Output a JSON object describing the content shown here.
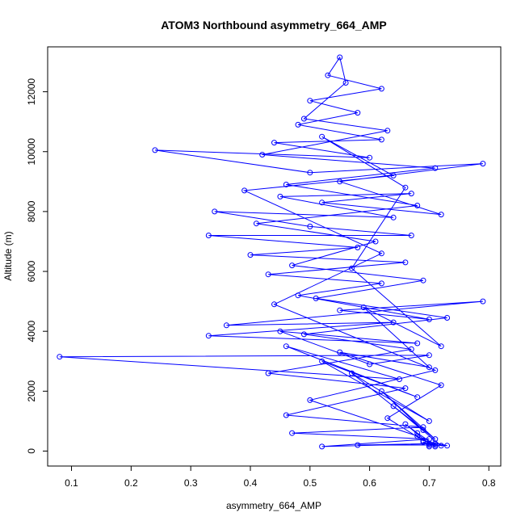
{
  "chart_data": {
    "type": "line",
    "title": "ATOM3 Northbound asymmetry_664_AMP",
    "xlabel": "asymmetry_664_AMP",
    "ylabel": "Altitude (m)",
    "xlim": [
      0.06,
      0.82
    ],
    "ylim": [
      -500,
      13500
    ],
    "x_ticks": [
      0.1,
      0.2,
      0.3,
      0.4,
      0.5,
      0.6,
      0.7,
      0.8
    ],
    "x_tick_labels": [
      "0.1",
      "0.2",
      "0.3",
      "0.4",
      "0.5",
      "0.6",
      "0.7",
      "0.8"
    ],
    "y_ticks": [
      0,
      2000,
      4000,
      6000,
      8000,
      10000,
      12000
    ],
    "y_tick_labels": [
      "0",
      "2000",
      "4000",
      "6000",
      "8000",
      "10000",
      "12000"
    ],
    "grid": false,
    "series_color": "#0000ff",
    "markers": "open-circle",
    "series": [
      {
        "points": [
          {
            "x": 0.7,
            "y": 150
          },
          {
            "x": 0.69,
            "y": 300
          },
          {
            "x": 0.71,
            "y": 200
          },
          {
            "x": 0.68,
            "y": 600
          },
          {
            "x": 0.66,
            "y": 900
          },
          {
            "x": 0.7,
            "y": 250
          },
          {
            "x": 0.72,
            "y": 180
          },
          {
            "x": 0.64,
            "y": 1500
          },
          {
            "x": 0.71,
            "y": 400
          },
          {
            "x": 0.62,
            "y": 2000
          },
          {
            "x": 0.69,
            "y": 700
          },
          {
            "x": 0.57,
            "y": 2600
          },
          {
            "x": 0.7,
            "y": 1000
          },
          {
            "x": 0.52,
            "y": 3000
          },
          {
            "x": 0.68,
            "y": 1800
          },
          {
            "x": 0.46,
            "y": 3500
          },
          {
            "x": 0.65,
            "y": 2400
          },
          {
            "x": 0.08,
            "y": 3150
          },
          {
            "x": 0.7,
            "y": 3200
          },
          {
            "x": 0.6,
            "y": 2900
          },
          {
            "x": 0.45,
            "y": 4000
          },
          {
            "x": 0.68,
            "y": 3600
          },
          {
            "x": 0.33,
            "y": 3850
          },
          {
            "x": 0.64,
            "y": 4300
          },
          {
            "x": 0.36,
            "y": 4200
          },
          {
            "x": 0.79,
            "y": 5000
          },
          {
            "x": 0.55,
            "y": 4700
          },
          {
            "x": 0.7,
            "y": 4400
          },
          {
            "x": 0.48,
            "y": 5200
          },
          {
            "x": 0.62,
            "y": 5600
          },
          {
            "x": 0.43,
            "y": 5900
          },
          {
            "x": 0.66,
            "y": 6300
          },
          {
            "x": 0.4,
            "y": 6550
          },
          {
            "x": 0.58,
            "y": 6800
          },
          {
            "x": 0.33,
            "y": 7200
          },
          {
            "x": 0.67,
            "y": 7200
          },
          {
            "x": 0.5,
            "y": 7500
          },
          {
            "x": 0.34,
            "y": 8000
          },
          {
            "x": 0.64,
            "y": 7800
          },
          {
            "x": 0.45,
            "y": 8500
          },
          {
            "x": 0.67,
            "y": 8600
          },
          {
            "x": 0.52,
            "y": 8300
          },
          {
            "x": 0.72,
            "y": 7900
          },
          {
            "x": 0.55,
            "y": 9000
          },
          {
            "x": 0.79,
            "y": 9600
          },
          {
            "x": 0.5,
            "y": 9300
          },
          {
            "x": 0.24,
            "y": 10050
          },
          {
            "x": 0.6,
            "y": 9800
          },
          {
            "x": 0.44,
            "y": 10300
          },
          {
            "x": 0.62,
            "y": 10400
          },
          {
            "x": 0.48,
            "y": 10900
          },
          {
            "x": 0.58,
            "y": 11300
          },
          {
            "x": 0.5,
            "y": 11700
          },
          {
            "x": 0.62,
            "y": 12100
          },
          {
            "x": 0.53,
            "y": 12550
          },
          {
            "x": 0.55,
            "y": 13150
          },
          {
            "x": 0.56,
            "y": 12300
          },
          {
            "x": 0.49,
            "y": 11100
          },
          {
            "x": 0.63,
            "y": 10700
          },
          {
            "x": 0.42,
            "y": 9900
          },
          {
            "x": 0.71,
            "y": 9450
          },
          {
            "x": 0.46,
            "y": 8900
          },
          {
            "x": 0.68,
            "y": 8200
          },
          {
            "x": 0.41,
            "y": 7600
          },
          {
            "x": 0.61,
            "y": 7000
          },
          {
            "x": 0.47,
            "y": 6200
          },
          {
            "x": 0.69,
            "y": 5700
          },
          {
            "x": 0.51,
            "y": 5100
          },
          {
            "x": 0.73,
            "y": 4450
          },
          {
            "x": 0.49,
            "y": 3900
          },
          {
            "x": 0.67,
            "y": 3400
          },
          {
            "x": 0.43,
            "y": 2600
          },
          {
            "x": 0.66,
            "y": 2100
          },
          {
            "x": 0.46,
            "y": 1200
          },
          {
            "x": 0.69,
            "y": 800
          },
          {
            "x": 0.47,
            "y": 600
          },
          {
            "x": 0.7,
            "y": 400
          },
          {
            "x": 0.52,
            "y": 150
          },
          {
            "x": 0.71,
            "y": 250
          },
          {
            "x": 0.58,
            "y": 200
          },
          {
            "x": 0.7,
            "y": 200
          },
          {
            "x": 0.73,
            "y": 180
          },
          {
            "x": 0.69,
            "y": 350
          },
          {
            "x": 0.63,
            "y": 1100
          },
          {
            "x": 0.72,
            "y": 2200
          },
          {
            "x": 0.55,
            "y": 3300
          },
          {
            "x": 0.7,
            "y": 2800
          },
          {
            "x": 0.59,
            "y": 4800
          },
          {
            "x": 0.72,
            "y": 3500
          },
          {
            "x": 0.57,
            "y": 6100
          },
          {
            "x": 0.66,
            "y": 8800
          },
          {
            "x": 0.52,
            "y": 10500
          },
          {
            "x": 0.64,
            "y": 9200
          },
          {
            "x": 0.39,
            "y": 8700
          },
          {
            "x": 0.62,
            "y": 6600
          },
          {
            "x": 0.44,
            "y": 4900
          },
          {
            "x": 0.71,
            "y": 2700
          },
          {
            "x": 0.5,
            "y": 1700
          },
          {
            "x": 0.68,
            "y": 500
          },
          {
            "x": 0.71,
            "y": 150
          }
        ]
      }
    ]
  }
}
